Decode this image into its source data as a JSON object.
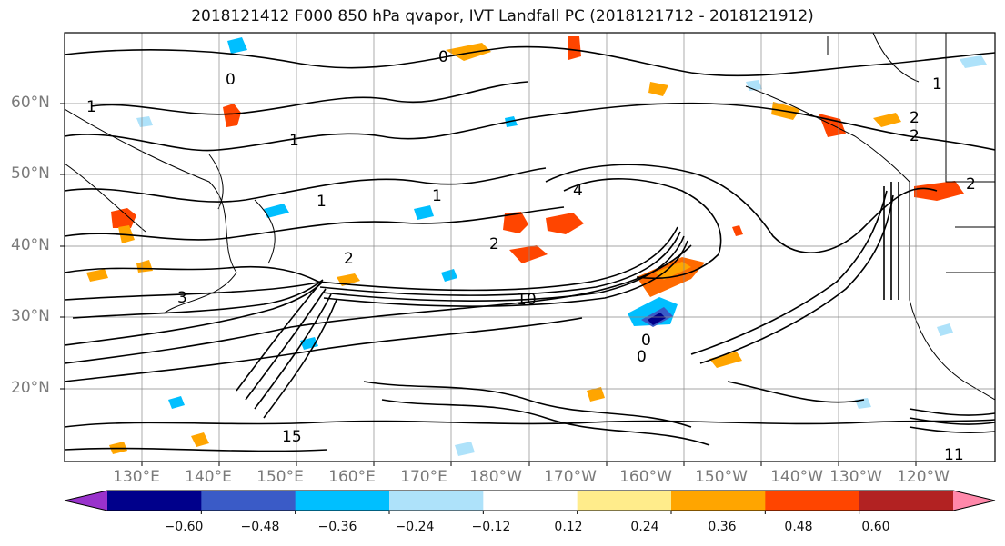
{
  "title": "2018121412 F000 850 hPa qvapor, IVT Landfall PC (2018121712 - 2018121912)",
  "lat_labels": [
    "60°N",
    "50°N",
    "40°N",
    "30°N",
    "20°N"
  ],
  "lon_labels": [
    "130°E",
    "140°E",
    "150°E",
    "160°E",
    "170°E",
    "180°W",
    "170°W",
    "160°W",
    "150°W",
    "140°W",
    "130°W",
    "120°W"
  ],
  "colorbar": {
    "colors": [
      "#9932cc",
      "#00008b",
      "#3a5bc7",
      "#00bfff",
      "#aee2fa",
      "#ffffff",
      "#ffec8b",
      "#ffa500",
      "#ff4500",
      "#b22222",
      "#ff88aa"
    ],
    "ticks": [
      "−0.60",
      "−0.48",
      "−0.36",
      "−0.24",
      "−0.12",
      "0.12",
      "0.24",
      "0.36",
      "0.48",
      "0.60"
    ]
  },
  "contour_labels": [
    "1",
    "0",
    "0",
    "1",
    "2",
    "2",
    "4",
    "1",
    "1",
    "2",
    "3",
    "10",
    "0",
    "0",
    "15",
    "11",
    "2",
    "2",
    "1"
  ],
  "colors": {
    "ocean": "#ffffff",
    "contour": "#000000",
    "grid": "#888888"
  }
}
